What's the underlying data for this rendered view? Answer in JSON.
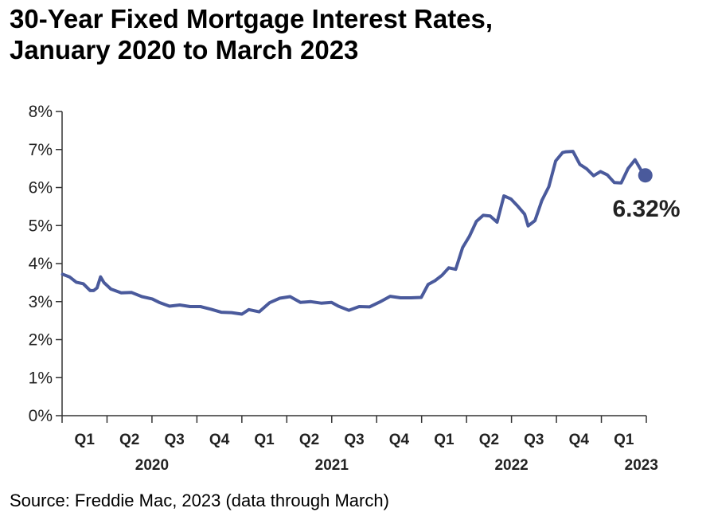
{
  "chart_data": {
    "type": "line",
    "title": "30-Year Fixed Mortgage Interest Rates,",
    "subtitle": "January 2020 to March 2023",
    "xlabel": "",
    "ylabel": "",
    "ylim": [
      0,
      8
    ],
    "yticks": [
      "0%",
      "1%",
      "2%",
      "3%",
      "4%",
      "5%",
      "6%",
      "7%",
      "8%"
    ],
    "quarter_labels": [
      "Q1",
      "Q2",
      "Q3",
      "Q4",
      "Q1",
      "Q2",
      "Q3",
      "Q4",
      "Q1",
      "Q2",
      "Q3",
      "Q4",
      "Q1"
    ],
    "year_labels": [
      "2020",
      "2021",
      "2022",
      "2023"
    ],
    "grid": false,
    "line_color": "#4a5a9c",
    "end_label": "6.32%",
    "series": [
      {
        "x": [
          "2020-01-02",
          "2020-01-16",
          "2020-01-30",
          "2020-02-13",
          "2020-02-27",
          "2020-03-05",
          "2020-03-12",
          "2020-03-19",
          "2020-03-26",
          "2020-04-09",
          "2020-04-30",
          "2020-05-21",
          "2020-06-11",
          "2020-07-02",
          "2020-07-16",
          "2020-08-06",
          "2020-08-27",
          "2020-09-17",
          "2020-10-08",
          "2020-10-29",
          "2020-11-19",
          "2020-12-10",
          "2020-12-31",
          "2021-01-14",
          "2021-02-04",
          "2021-02-25",
          "2021-03-18",
          "2021-04-08",
          "2021-04-29",
          "2021-05-20",
          "2021-06-10",
          "2021-07-01",
          "2021-07-15",
          "2021-08-05",
          "2021-08-26",
          "2021-09-16",
          "2021-10-07",
          "2021-10-28",
          "2021-11-18",
          "2021-12-09",
          "2021-12-30",
          "2022-01-13",
          "2022-01-27",
          "2022-02-10",
          "2022-02-24",
          "2022-03-10",
          "2022-03-24",
          "2022-04-07",
          "2022-04-21",
          "2022-05-05",
          "2022-05-19",
          "2022-06-02",
          "2022-06-16",
          "2022-06-30",
          "2022-07-14",
          "2022-07-28",
          "2022-08-04",
          "2022-08-18",
          "2022-09-01",
          "2022-09-15",
          "2022-09-29",
          "2022-10-13",
          "2022-10-20",
          "2022-11-03",
          "2022-11-17",
          "2022-12-01",
          "2022-12-15",
          "2022-12-29",
          "2023-01-12",
          "2023-01-26",
          "2023-02-09",
          "2023-02-23",
          "2023-03-09",
          "2023-03-23",
          "2023-03-30"
        ],
        "values": [
          3.72,
          3.65,
          3.51,
          3.47,
          3.29,
          3.29,
          3.36,
          3.65,
          3.5,
          3.33,
          3.23,
          3.24,
          3.13,
          3.07,
          2.98,
          2.88,
          2.91,
          2.87,
          2.87,
          2.8,
          2.72,
          2.71,
          2.67,
          2.79,
          2.73,
          2.97,
          3.09,
          3.13,
          2.98,
          3.0,
          2.96,
          2.98,
          2.88,
          2.77,
          2.87,
          2.86,
          2.99,
          3.14,
          3.1,
          3.1,
          3.11,
          3.45,
          3.55,
          3.69,
          3.89,
          3.85,
          4.42,
          4.72,
          5.11,
          5.27,
          5.25,
          5.09,
          5.78,
          5.7,
          5.51,
          5.3,
          4.99,
          5.13,
          5.66,
          6.02,
          6.7,
          6.92,
          6.94,
          6.95,
          6.61,
          6.49,
          6.31,
          6.42,
          6.33,
          6.13,
          6.12,
          6.5,
          6.73,
          6.42,
          6.32
        ]
      }
    ]
  },
  "source": "Source: Freddie Mac, 2023 (data through March)"
}
